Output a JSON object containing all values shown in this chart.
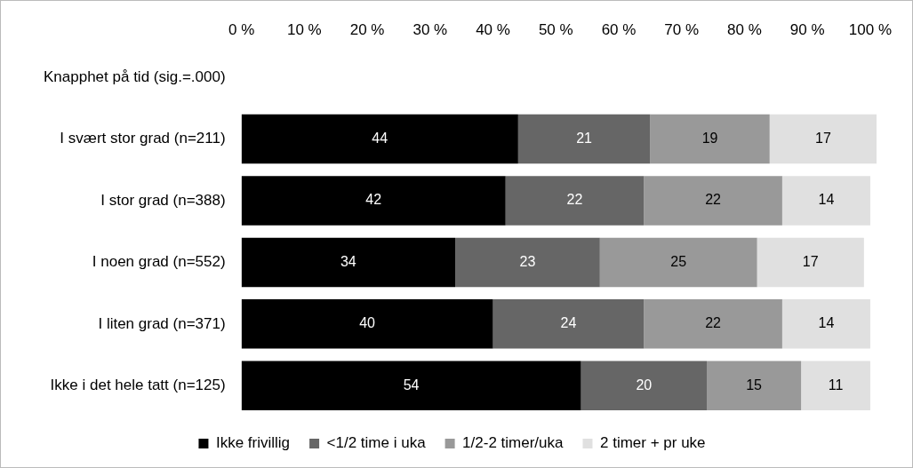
{
  "chart_data": {
    "type": "bar",
    "orientation": "horizontal",
    "stacked": true,
    "data_labels": true,
    "legend": "bottom",
    "grid": false,
    "categories": [
      "Knapphet på tid (sig.=.000)",
      "I svært stor grad (n=211)",
      "I stor grad (n=388)",
      "I noen grad (n=552)",
      "I liten grad (n=371)",
      "Ikke i det hele tatt (n=125)"
    ],
    "series": [
      {
        "name": "Ikke frivillig",
        "color": "#000000",
        "values": [
          null,
          44,
          42,
          34,
          40,
          54
        ]
      },
      {
        "name": "<1/2 time i uka",
        "color": "#666666",
        "values": [
          null,
          21,
          22,
          23,
          24,
          20
        ]
      },
      {
        "name": "1/2-2 timer/uka",
        "color": "#999999",
        "values": [
          null,
          19,
          22,
          25,
          22,
          15
        ]
      },
      {
        "name": "2 timer + pr uke",
        "color": "#e0e0e0",
        "values": [
          null,
          17,
          14,
          17,
          14,
          11
        ]
      }
    ],
    "xlim": [
      0,
      101
    ],
    "xticks": [
      {
        "value": 0,
        "label": "0 %"
      },
      {
        "value": 10,
        "label": "10 %"
      },
      {
        "value": 20,
        "label": "20 %"
      },
      {
        "value": 30,
        "label": "30 %"
      },
      {
        "value": 40,
        "label": "40 %"
      },
      {
        "value": 50,
        "label": "50 %"
      },
      {
        "value": 60,
        "label": "60 %"
      },
      {
        "value": 70,
        "label": "70 %"
      },
      {
        "value": 80,
        "label": "80 %"
      },
      {
        "value": 90,
        "label": "90 %"
      },
      {
        "value": 100,
        "label": "100 %"
      }
    ]
  }
}
